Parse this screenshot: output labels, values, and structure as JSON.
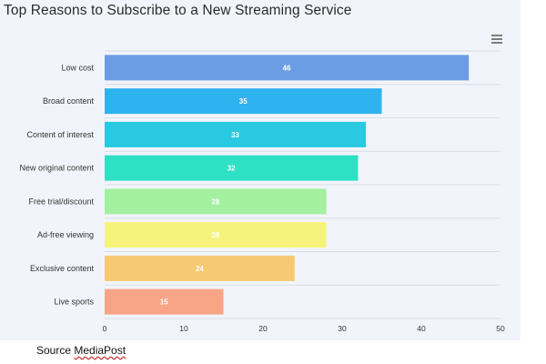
{
  "chart_data": {
    "type": "bar",
    "orientation": "horizontal",
    "title": "Top Reasons to Subscribe to a New Streaming Service",
    "categories": [
      "Low cost",
      "Broad content",
      "Content of interest",
      "New original content",
      "Free trial/discount",
      "Ad-free viewing",
      "Exclusive content",
      "Live sports"
    ],
    "values": [
      46,
      35,
      33,
      32,
      28,
      28,
      24,
      15
    ],
    "colors": [
      "#6a9de4",
      "#2eb2f0",
      "#28c9e1",
      "#2ee0c4",
      "#a3f0a0",
      "#f6f37c",
      "#f7c972",
      "#f8a487"
    ],
    "xlim": [
      0,
      50
    ],
    "xticks": [
      0,
      10,
      20,
      30,
      40,
      50
    ],
    "xlabel": "",
    "ylabel": "",
    "grid": true
  },
  "toolbar": {
    "menu_icon": "hamburger-menu-icon"
  },
  "footer": {
    "source_prefix": "Source ",
    "source_name": "MediaPost"
  }
}
